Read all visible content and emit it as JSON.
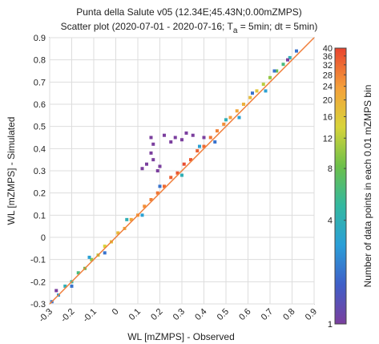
{
  "chart_data": {
    "type": "scatter",
    "title": "Punta della Salute v05 (12.34E;45.43N;0.00mZMPS)",
    "subtitle": {
      "before": "Scatter plot  (2020-07-01 - 2020-07-16; T",
      "subscript": "a",
      "after": " = 5min; dt = 5min)"
    },
    "x_label": "WL [mZMPS] - Observed",
    "y_label": "WL [mZMPS] - Simulated",
    "xlim": [
      -0.3,
      0.9
    ],
    "ylim": [
      -0.3,
      0.9
    ],
    "xticks": [
      -0.3,
      -0.2,
      -0.1,
      0,
      0.1,
      0.2,
      0.3,
      0.4,
      0.5,
      0.6,
      0.7,
      0.8,
      0.9
    ],
    "yticks": [
      -0.3,
      -0.2,
      -0.1,
      0,
      0.1,
      0.2,
      0.3,
      0.4,
      0.5,
      0.6,
      0.7,
      0.8,
      0.9
    ],
    "grid": true,
    "reference_line_color": "#f07f3c",
    "x": [
      -0.29,
      -0.26,
      -0.23,
      -0.2,
      -0.17,
      -0.14,
      -0.11,
      -0.08,
      -0.05,
      -0.02,
      0.01,
      0.04,
      0.07,
      0.1,
      0.13,
      0.16,
      0.19,
      0.22,
      0.25,
      0.28,
      0.31,
      0.34,
      0.37,
      0.4,
      0.43,
      0.46,
      0.49,
      0.52,
      0.55,
      0.58,
      0.61,
      0.64,
      0.67,
      0.7,
      0.73,
      0.76,
      0.79,
      0.82,
      -0.27,
      -0.2,
      -0.12,
      -0.05,
      0.05,
      0.12,
      0.2,
      0.3,
      0.38,
      0.45,
      0.5,
      0.56,
      0.62,
      0.68,
      0.72,
      0.78,
      0.16,
      0.17,
      0.16,
      0.17,
      0.2,
      0.12,
      0.25,
      0.3,
      0.32,
      0.22,
      0.27,
      0.35,
      0.4,
      0.19,
      0.14
    ],
    "y": [
      -0.29,
      -0.26,
      -0.22,
      -0.2,
      -0.16,
      -0.14,
      -0.1,
      -0.08,
      -0.04,
      -0.02,
      0.02,
      0.04,
      0.08,
      0.1,
      0.14,
      0.17,
      0.2,
      0.23,
      0.27,
      0.29,
      0.33,
      0.35,
      0.39,
      0.41,
      0.45,
      0.48,
      0.51,
      0.54,
      0.57,
      0.6,
      0.63,
      0.66,
      0.69,
      0.72,
      0.75,
      0.78,
      0.81,
      0.84,
      -0.24,
      -0.22,
      -0.09,
      -0.07,
      0.08,
      0.1,
      0.23,
      0.28,
      0.41,
      0.43,
      0.53,
      0.54,
      0.65,
      0.66,
      0.75,
      0.8,
      0.45,
      0.42,
      0.38,
      0.35,
      0.32,
      0.31,
      0.43,
      0.44,
      0.47,
      0.46,
      0.45,
      0.46,
      0.45,
      0.3,
      0.33
    ],
    "counts": [
      2,
      3,
      4,
      5,
      6,
      8,
      10,
      12,
      14,
      16,
      18,
      20,
      22,
      24,
      26,
      28,
      30,
      32,
      34,
      36,
      38,
      36,
      34,
      32,
      30,
      28,
      26,
      24,
      22,
      20,
      18,
      16,
      12,
      10,
      8,
      6,
      4,
      2,
      1,
      2,
      3,
      2,
      4,
      3,
      2,
      4,
      3,
      2,
      4,
      3,
      2,
      3,
      2,
      1,
      1,
      1,
      1,
      1,
      1,
      1,
      1,
      1,
      1,
      1,
      1,
      1,
      1,
      1,
      1
    ],
    "colorbar": {
      "label": "Number of data points in each 0.01 mZMPS bin",
      "clim": [
        1,
        40
      ],
      "scale": "log",
      "ticks": [
        1,
        4,
        8,
        12,
        16,
        20,
        24,
        28,
        32,
        36,
        40
      ],
      "colormap": [
        "#7b3f9e",
        "#3f5fc8",
        "#2a9fd8",
        "#33b8a0",
        "#6cc04a",
        "#d8d43a",
        "#f5a03a",
        "#e8432e"
      ]
    }
  }
}
